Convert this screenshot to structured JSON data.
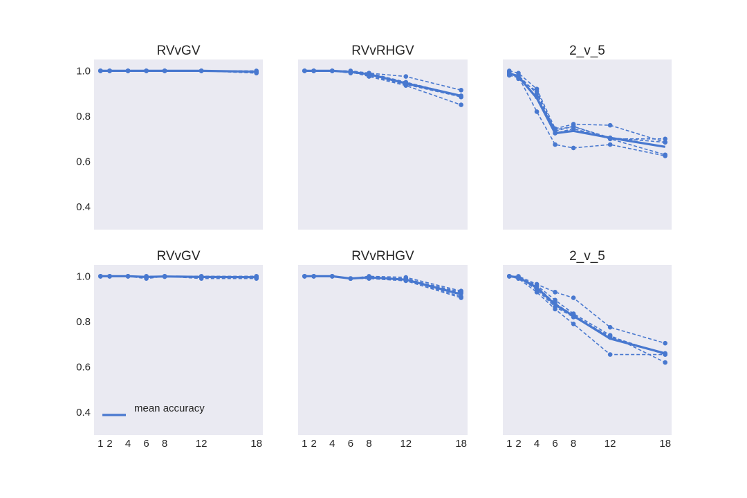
{
  "chart_data": [
    {
      "type": "line",
      "title": "RVvGV",
      "x": [
        1,
        2,
        4,
        6,
        8,
        12,
        18
      ],
      "ylim": [
        0.3,
        1.05
      ],
      "yticks": [
        "0.4",
        "0.6",
        "0.8",
        "1.0"
      ],
      "xticks": [],
      "mean": [
        1.0,
        1.0,
        1.0,
        1.0,
        1.0,
        1.0,
        0.996
      ],
      "runs": [
        [
          1.0,
          1.0,
          1.0,
          1.0,
          1.0,
          1.0,
          0.99
        ],
        [
          1.0,
          1.0,
          1.0,
          1.0,
          1.0,
          1.0,
          0.995
        ],
        [
          1.0,
          1.0,
          1.0,
          1.0,
          1.0,
          1.0,
          1.0
        ],
        [
          1.0,
          1.0,
          1.0,
          1.0,
          1.0,
          1.0,
          0.997
        ],
        [
          1.0,
          1.0,
          1.0,
          1.0,
          1.0,
          1.0,
          0.993
        ]
      ]
    },
    {
      "type": "line",
      "title": "RVvRHGV",
      "x": [
        1,
        2,
        4,
        6,
        8,
        12,
        18
      ],
      "ylim": [
        0.3,
        1.05
      ],
      "yticks": [],
      "xticks": [],
      "mean": [
        1.0,
        1.0,
        1.0,
        0.995,
        0.985,
        0.945,
        0.89
      ],
      "runs": [
        [
          1.0,
          1.0,
          1.0,
          0.99,
          0.99,
          0.975,
          0.915
        ],
        [
          1.0,
          1.0,
          1.0,
          0.995,
          0.975,
          0.935,
          0.85
        ],
        [
          1.0,
          1.0,
          1.0,
          1.0,
          0.99,
          0.95,
          0.89
        ],
        [
          1.0,
          1.0,
          1.0,
          0.995,
          0.985,
          0.945,
          0.885
        ],
        [
          1.0,
          1.0,
          1.0,
          0.995,
          0.98,
          0.94,
          0.885
        ]
      ]
    },
    {
      "type": "line",
      "title": "2_v_5",
      "x": [
        1,
        2,
        4,
        6,
        8,
        12,
        18
      ],
      "ylim": [
        0.3,
        1.05
      ],
      "yticks": [],
      "xticks": [],
      "mean": [
        0.99,
        0.975,
        0.88,
        0.725,
        0.735,
        0.705,
        0.665
      ],
      "runs": [
        [
          1.0,
          0.99,
          0.92,
          0.745,
          0.765,
          0.76,
          0.685
        ],
        [
          0.985,
          0.975,
          0.82,
          0.675,
          0.66,
          0.675,
          0.625
        ],
        [
          0.995,
          0.965,
          0.91,
          0.735,
          0.755,
          0.7,
          0.7
        ],
        [
          0.99,
          0.98,
          0.9,
          0.725,
          0.745,
          0.7,
          0.63
        ],
        [
          0.98,
          0.97,
          0.885,
          0.74,
          0.755,
          0.705,
          0.685
        ]
      ]
    },
    {
      "type": "line",
      "title": "RVvGV",
      "x": [
        1,
        2,
        4,
        6,
        8,
        12,
        18
      ],
      "ylim": [
        0.3,
        1.05
      ],
      "yticks": [
        "0.4",
        "0.6",
        "0.8",
        "1.0"
      ],
      "xticks": [
        "1",
        "2",
        "4",
        "6",
        "8",
        "12",
        "18"
      ],
      "mean": [
        1.0,
        1.0,
        1.0,
        0.997,
        0.999,
        0.997,
        0.996
      ],
      "runs": [
        [
          1.0,
          1.0,
          1.0,
          0.99,
          1.0,
          0.99,
          0.99
        ],
        [
          1.0,
          1.0,
          1.0,
          1.0,
          1.0,
          1.0,
          1.0
        ],
        [
          1.0,
          1.0,
          1.0,
          0.995,
          1.0,
          0.995,
          0.995
        ],
        [
          1.0,
          1.0,
          1.0,
          1.0,
          1.0,
          1.0,
          0.993
        ],
        [
          1.0,
          1.0,
          1.0,
          0.997,
          0.998,
          0.997,
          1.0
        ]
      ]
    },
    {
      "type": "line",
      "title": "RVvRHGV",
      "x": [
        1,
        2,
        4,
        6,
        8,
        12,
        18
      ],
      "ylim": [
        0.3,
        1.05
      ],
      "yticks": [],
      "xticks": [
        "1",
        "2",
        "4",
        "6",
        "8",
        "12",
        "18"
      ],
      "mean": [
        1.0,
        1.0,
        1.0,
        0.99,
        0.995,
        0.985,
        0.92
      ],
      "runs": [
        [
          1.0,
          1.0,
          1.0,
          0.99,
          1.0,
          0.995,
          0.935
        ],
        [
          1.0,
          1.0,
          1.0,
          0.99,
          0.99,
          0.98,
          0.905
        ],
        [
          1.0,
          1.0,
          1.0,
          0.99,
          0.995,
          0.99,
          0.925
        ],
        [
          1.0,
          1.0,
          1.0,
          0.99,
          0.995,
          0.985,
          0.91
        ],
        [
          1.0,
          1.0,
          1.0,
          0.99,
          0.993,
          0.988,
          0.93
        ]
      ]
    },
    {
      "type": "line",
      "title": "2_v_5",
      "x": [
        1,
        2,
        4,
        6,
        8,
        12,
        18
      ],
      "ylim": [
        0.3,
        1.05
      ],
      "yticks": [],
      "xticks": [
        "1",
        "2",
        "4",
        "6",
        "8",
        "12",
        "18"
      ],
      "mean": [
        1.0,
        0.995,
        0.95,
        0.875,
        0.825,
        0.725,
        0.66
      ],
      "runs": [
        [
          1.0,
          1.0,
          0.965,
          0.93,
          0.905,
          0.775,
          0.705
        ],
        [
          1.0,
          0.99,
          0.93,
          0.855,
          0.79,
          0.655,
          0.655
        ],
        [
          1.0,
          0.995,
          0.96,
          0.895,
          0.835,
          0.74,
          0.62
        ],
        [
          1.0,
          0.995,
          0.94,
          0.865,
          0.82,
          0.735,
          0.655
        ],
        [
          1.0,
          0.99,
          0.955,
          0.88,
          0.83,
          0.73,
          0.66
        ]
      ]
    }
  ],
  "legend": {
    "label": "mean accuracy",
    "placement": "lower-left"
  },
  "colors": {
    "line": "#4878cf",
    "panel_background": "#eaeaf2",
    "text": "#262626"
  }
}
